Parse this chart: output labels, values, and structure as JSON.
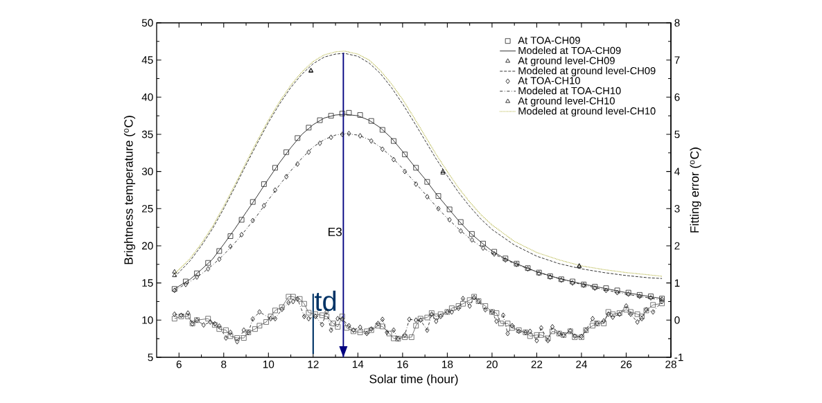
{
  "chart_data": {
    "type": "scatter",
    "xlabel": "Solar time (hour)",
    "ylabel": "Brightness temperature ($^{o}$C)",
    "y2label": "Fitting error ($^{o}$C)",
    "xlim": [
      5,
      28
    ],
    "xticks": [
      6,
      8,
      10,
      12,
      14,
      16,
      18,
      20,
      22,
      24,
      26,
      28
    ],
    "ylim": [
      5,
      50
    ],
    "yticks": [
      5,
      10,
      15,
      20,
      25,
      30,
      35,
      40,
      45,
      50
    ],
    "y2lim": [
      -1,
      8
    ],
    "y2ticks": [
      -1,
      0,
      1,
      2,
      3,
      4,
      5,
      6,
      7,
      8
    ],
    "legend": "top right",
    "grid": false,
    "ref_lines": [
      {
        "axis": "x",
        "value": 13.35,
        "label": "E3",
        "color": "#000080"
      },
      {
        "axis": "x",
        "value": 12,
        "label": "td",
        "color": "#003366"
      }
    ],
    "series": [
      {
        "name": "At TOA-CH09",
        "marker": "square",
        "color": "#222222",
        "x": [
          5.8,
          6.3,
          6.8,
          7.3,
          7.8,
          8.3,
          8.8,
          9.3,
          9.8,
          10.3,
          10.8,
          11.3,
          11.8,
          12.3,
          12.8,
          13.3,
          13.6,
          14.1,
          14.6,
          15.1,
          15.6,
          16.1,
          16.6,
          17.1,
          17.6,
          18.1,
          18.6,
          19.1,
          19.6,
          20.1,
          20.6,
          21.1,
          21.6,
          22.1,
          22.6,
          23.1,
          23.6,
          24.1,
          24.6,
          25.1,
          25.6,
          26.1,
          26.6,
          27.1,
          27.6
        ],
        "values": [
          14.2,
          15.2,
          16.3,
          17.7,
          19.3,
          21.3,
          23.5,
          25.9,
          28.3,
          30.5,
          32.6,
          34.5,
          35.9,
          36.9,
          37.5,
          37.8,
          37.9,
          37.6,
          36.8,
          35.6,
          34.1,
          32.3,
          30.5,
          28.6,
          26.7,
          24.9,
          23.2,
          21.6,
          20.3,
          19.2,
          18.3,
          17.6,
          17.0,
          16.4,
          15.9,
          15.5,
          15.2,
          14.8,
          14.5,
          14.3,
          14.0,
          13.7,
          13.4,
          13.2,
          12.9
        ]
      },
      {
        "name": "Modeled at TOA-CH09",
        "type": "line",
        "marker": "none",
        "line_style": "solid",
        "color": "#000000",
        "x": [
          5.8,
          6.5,
          7,
          7.5,
          8,
          8.5,
          9,
          9.5,
          10,
          10.5,
          11,
          11.5,
          12,
          12.5,
          13,
          13.4,
          14,
          14.5,
          15,
          15.5,
          16,
          16.5,
          17,
          17.5,
          18,
          18.5,
          19,
          19.5,
          20,
          20.5,
          21,
          22,
          23,
          24,
          25,
          26,
          27,
          27.6
        ],
        "values": [
          14.2,
          15.5,
          16.8,
          18.2,
          20.2,
          22.3,
          24.5,
          26.7,
          29.0,
          31.2,
          33.2,
          35.0,
          36.3,
          37.2,
          37.6,
          37.7,
          37.5,
          36.9,
          35.9,
          34.5,
          32.7,
          30.8,
          29.0,
          27.0,
          25.2,
          23.4,
          21.8,
          20.5,
          19.3,
          18.4,
          17.7,
          16.5,
          15.6,
          14.9,
          14.3,
          13.7,
          13.2,
          12.9
        ]
      },
      {
        "name": "At ground level-CH09",
        "marker": "triangle",
        "color": "#000000",
        "x": [
          5.8,
          11.9,
          17.8,
          23.9
        ],
        "values": [
          16.0,
          43.5,
          29.8,
          17.2
        ]
      },
      {
        "name": "Modeled at ground level-CH09",
        "type": "line",
        "marker": "none",
        "line_style": "dashed",
        "color": "#000000",
        "x": [
          5.8,
          6.5,
          7,
          7.5,
          8,
          8.5,
          9,
          9.5,
          10,
          10.5,
          11,
          11.5,
          12,
          12.5,
          13,
          13.4,
          14,
          14.5,
          15,
          15.5,
          16,
          16.5,
          17,
          17.5,
          18,
          18.5,
          19,
          19.5,
          20,
          21,
          22,
          23,
          24,
          25,
          26,
          27,
          27.6
        ],
        "values": [
          15.8,
          18.0,
          20.0,
          22.3,
          25.0,
          27.9,
          30.9,
          33.8,
          36.6,
          39.1,
          41.3,
          43.1,
          44.5,
          45.4,
          45.8,
          45.9,
          45.5,
          44.6,
          43.2,
          41.3,
          39.1,
          36.7,
          34.2,
          31.7,
          29.4,
          27.2,
          25.3,
          23.6,
          22.2,
          20.1,
          18.6,
          17.6,
          16.9,
          16.4,
          16.0,
          15.7,
          15.6
        ]
      },
      {
        "name": "At TOA-CH10",
        "marker": "diamond",
        "color": "#000000",
        "x": [
          5.8,
          6.3,
          6.8,
          7.3,
          7.8,
          8.3,
          8.8,
          9.3,
          9.8,
          10.3,
          10.8,
          11.3,
          11.8,
          12.3,
          12.8,
          13.3,
          13.6,
          14.1,
          14.6,
          15.1,
          15.6,
          16.1,
          16.6,
          17.1,
          17.6,
          18.1,
          18.6,
          19.1,
          19.6,
          20.1,
          20.6,
          21.1,
          21.6,
          22.1,
          22.6,
          23.1,
          23.6,
          24.1,
          24.6,
          25.1,
          25.6,
          26.1,
          26.6,
          27.1,
          27.6
        ],
        "values": [
          14.0,
          14.8,
          15.8,
          16.9,
          18.2,
          19.9,
          21.5,
          23.4,
          25.4,
          27.5,
          29.3,
          31.0,
          32.6,
          33.8,
          34.6,
          35.0,
          35.1,
          34.8,
          34.1,
          33.0,
          31.6,
          30.0,
          28.3,
          26.6,
          25.0,
          23.5,
          22.0,
          20.8,
          19.7,
          18.9,
          18.1,
          17.5,
          16.9,
          16.3,
          15.8,
          15.4,
          15.0,
          14.7,
          14.3,
          14.0,
          13.7,
          13.5,
          13.2,
          13.0,
          12.8
        ]
      },
      {
        "name": "Modeled at TOA-CH10",
        "type": "line",
        "marker": "none",
        "line_style": "dashdot",
        "color": "#000000",
        "x": [
          5.8,
          6.5,
          7,
          7.5,
          8,
          8.5,
          9,
          9.5,
          10,
          10.5,
          11,
          11.5,
          12,
          12.5,
          13,
          13.4,
          14,
          14.5,
          15,
          15.5,
          16,
          16.5,
          17,
          17.5,
          18,
          18.5,
          19,
          19.5,
          20,
          20.5,
          21,
          22,
          23,
          24,
          25,
          26,
          27,
          27.6
        ],
        "values": [
          14.0,
          15.2,
          16.2,
          17.4,
          18.8,
          20.4,
          22.2,
          24.1,
          26.2,
          28.2,
          30.1,
          31.8,
          33.3,
          34.3,
          34.9,
          35.1,
          34.9,
          34.3,
          33.3,
          32.0,
          30.4,
          28.7,
          27.0,
          25.3,
          23.7,
          22.3,
          21.0,
          19.9,
          19.0,
          18.3,
          17.6,
          16.5,
          15.6,
          14.8,
          14.1,
          13.5,
          13.0,
          12.7
        ]
      },
      {
        "name": "At ground level-CH10",
        "marker": "triangle",
        "color": "#000000",
        "x": [
          5.8,
          11.9,
          17.8,
          23.9
        ],
        "values": [
          16.5,
          43.6,
          30.0,
          17.3
        ]
      },
      {
        "name": "Modeled at ground level-CH10",
        "type": "line",
        "marker": "none",
        "line_style": "dotted",
        "color": "#999900",
        "x": [
          5.8,
          6.5,
          7,
          7.5,
          8,
          8.5,
          9,
          9.5,
          10,
          10.5,
          11,
          11.5,
          12,
          12.5,
          13,
          13.4,
          14,
          14.5,
          15,
          15.5,
          16,
          16.5,
          17,
          17.5,
          18,
          18.5,
          19,
          19.5,
          20,
          21,
          22,
          23,
          24,
          25,
          26,
          27,
          27.6
        ],
        "values": [
          16.2,
          18.3,
          20.3,
          22.6,
          25.3,
          28.2,
          31.2,
          34.1,
          36.9,
          39.4,
          41.6,
          43.4,
          44.8,
          45.7,
          46.1,
          46.2,
          45.8,
          45.0,
          43.6,
          41.8,
          39.7,
          37.3,
          34.8,
          32.3,
          30.0,
          27.8,
          25.9,
          24.2,
          22.8,
          20.6,
          19.1,
          18.1,
          17.3,
          16.8,
          16.4,
          16.1,
          15.9
        ]
      },
      {
        "type": "line",
        "axis": "y2",
        "marker": "square",
        "line_style": "solid",
        "color": "#555555",
        "x": [
          5.8,
          6.1,
          6.4,
          6.6,
          6.8,
          7.3,
          7.6,
          7.8,
          8.1,
          8.3,
          8.6,
          8.9,
          9.1,
          9.4,
          9.6,
          9.9,
          10.1,
          10.3,
          10.6,
          10.9,
          11.1,
          11.4,
          11.6,
          11.8,
          12.1,
          12.4,
          12.6,
          12.9,
          13.1,
          13.3,
          13.5,
          13.8,
          14.1,
          14.4,
          14.6,
          14.9,
          15.1,
          15.4,
          15.6,
          15.8,
          16.1,
          16.4,
          16.6,
          16.8,
          17.1,
          17.3,
          17.5,
          17.7,
          18.0,
          18.2,
          18.5,
          18.7,
          19.0,
          19.2,
          19.4,
          19.7,
          20.0,
          20.2,
          20.4,
          20.7,
          20.9,
          21.2,
          21.5,
          21.7,
          22.0,
          22.2,
          22.5,
          22.7,
          23.0,
          23.2,
          23.5,
          23.7,
          24.0,
          24.2,
          24.5,
          24.7,
          25.0,
          25.2,
          25.4,
          25.7,
          26.0,
          26.2,
          26.5,
          26.7,
          26.9,
          27.2,
          27.6
        ],
        "values": [
          0.04,
          0.1,
          0.1,
          -0.09,
          0,
          0.04,
          -0.13,
          -0.24,
          -0.27,
          -0.43,
          -0.48,
          -0.48,
          -0.33,
          -0.24,
          -0.15,
          -0.05,
          0.1,
          0.26,
          0.35,
          0.63,
          0.63,
          0.57,
          0.44,
          0.2,
          0.16,
          0.13,
          0.1,
          -0.09,
          -0.18,
          0.1,
          -0.21,
          -0.3,
          -0.33,
          -0.3,
          -0.27,
          -0.15,
          -0.17,
          -0.36,
          -0.49,
          -0.5,
          -0.46,
          -0.46,
          -0.15,
          0.04,
          0.07,
          0.19,
          0.1,
          0.16,
          0.22,
          0.32,
          0.38,
          0.44,
          0.54,
          0.63,
          0.51,
          0.38,
          0.22,
          0.19,
          -0.09,
          -0.09,
          -0.21,
          -0.27,
          -0.33,
          -0.43,
          -0.4,
          -0.4,
          -0.49,
          -0.3,
          -0.36,
          -0.4,
          -0.3,
          -0.46,
          -0.46,
          -0.27,
          -0.15,
          -0.09,
          -0.09,
          0.22,
          0.16,
          0.19,
          0.28,
          0.22,
          0.16,
          0.1,
          0.26,
          0.41,
          0.45
        ]
      },
      {
        "type": "line",
        "axis": "y2",
        "marker": "diamond",
        "line_style": "dashdot",
        "color": "#000000",
        "x": [
          5.8,
          6.1,
          6.4,
          6.6,
          6.8,
          7.1,
          7.4,
          7.6,
          7.8,
          8.1,
          8.3,
          8.6,
          8.9,
          9.1,
          9.3,
          9.6,
          10.1,
          10.3,
          10.6,
          10.9,
          11.1,
          11.3,
          11.6,
          11.8,
          12.1,
          12.4,
          12.6,
          12.8,
          13.1,
          13.3,
          13.6,
          13.8,
          14.1,
          14.4,
          14.6,
          14.9,
          15.1,
          15.3,
          15.6,
          15.8,
          16.1,
          16.3,
          16.6,
          16.8,
          17.1,
          17.3,
          17.5,
          17.7,
          18.0,
          18.2,
          18.5,
          18.7,
          19.0,
          19.2,
          19.4,
          19.7,
          20.0,
          20.2,
          20.5,
          20.7,
          20.9,
          21.2,
          21.5,
          21.7,
          22.0,
          22.2,
          22.5,
          22.7,
          23.0,
          23.2,
          23.5,
          23.7,
          24.0,
          24.2,
          24.5,
          24.7,
          25.0,
          25.2,
          25.4,
          25.7,
          26.0,
          26.2,
          26.5,
          26.7,
          26.9,
          27.2,
          27.6
        ],
        "values": [
          0.16,
          0.13,
          0.19,
          -0.1,
          0,
          -0.13,
          -0.05,
          -0.1,
          -0.16,
          -0.48,
          -0.33,
          -0.58,
          -0.27,
          -0.33,
          0.03,
          0.22,
          0.04,
          0.04,
          0.29,
          0.47,
          0.5,
          0.57,
          0.1,
          0.04,
          0.1,
          -0.12,
          0.22,
          -0.27,
          0.04,
          0.03,
          -0.15,
          -0.27,
          -0.19,
          -0.36,
          -0.24,
          -0.09,
          0.02,
          -0.33,
          -0.27,
          -0.5,
          -0.4,
          0.02,
          0,
          0,
          -0.27,
          0.16,
          -0.03,
          0.1,
          0.22,
          0.22,
          0.32,
          0.58,
          0.38,
          0.61,
          0.51,
          0.28,
          0.22,
          -0.03,
          0.13,
          -0.36,
          -0.15,
          -0.3,
          -0.33,
          -0.3,
          -0.55,
          -0.21,
          -0.55,
          -0.18,
          -0.36,
          -0.4,
          -0.29,
          -0.43,
          -0.44,
          -0.27,
          0.04,
          -0.09,
          -0.02,
          0.16,
          0.08,
          0.16,
          0.38,
          0.16,
          -0.05,
          0.04,
          0.28,
          0.22,
          0.5
        ]
      }
    ]
  }
}
